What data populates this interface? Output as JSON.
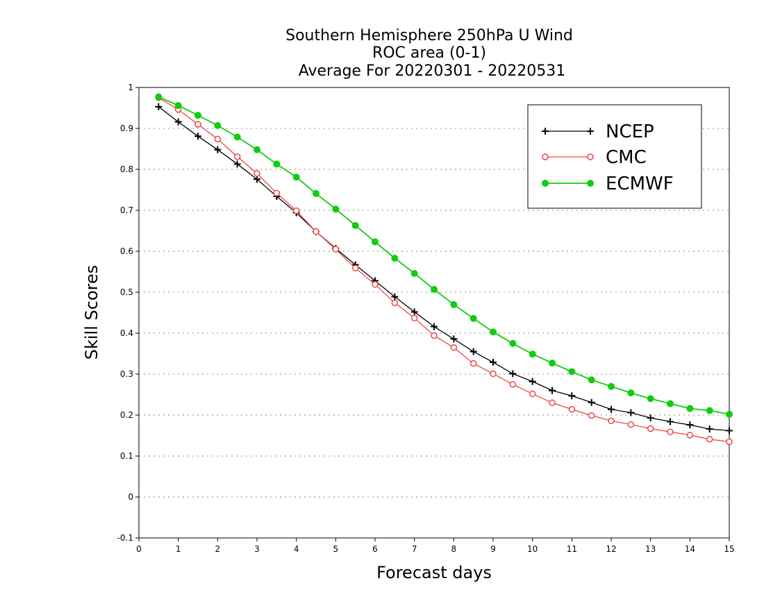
{
  "chart_data": {
    "type": "line",
    "title_lines": [
      "Southern Hemisphere 250hPa U Wind",
      "ROC area (0-1)",
      "Average For 20220301 - 20220531"
    ],
    "xlabel": "Forecast days",
    "ylabel": "Skill Scores",
    "xlim": [
      0,
      15
    ],
    "ylim": [
      -0.1,
      1
    ],
    "xticks": [
      0,
      1,
      2,
      3,
      4,
      5,
      6,
      7,
      8,
      9,
      10,
      11,
      12,
      13,
      14,
      15
    ],
    "xtick_labels": [
      "0",
      "1",
      "2",
      "3",
      "4",
      "5",
      "6",
      "7",
      "8",
      "9",
      "10",
      "11",
      "12",
      "13",
      "14",
      "15"
    ],
    "yticks": [
      -0.1,
      0,
      0.1,
      0.2,
      0.3,
      0.4,
      0.5,
      0.6,
      0.7,
      0.8,
      0.9,
      1
    ],
    "ytick_labels": [
      "-0.1",
      "0",
      "0.1",
      "0.2",
      "0.3",
      "0.4",
      "0.5",
      "0.6",
      "0.7",
      "0.8",
      "0.9",
      "1"
    ],
    "grid": "horizontal dotted",
    "legend_position": "top-right",
    "x": [
      0.5,
      1,
      1.5,
      2,
      2.5,
      3,
      3.5,
      4,
      4.5,
      5,
      5.5,
      6,
      6.5,
      7,
      7.5,
      8,
      8.5,
      9,
      9.5,
      10,
      10.5,
      11,
      11.5,
      12,
      12.5,
      13,
      13.5,
      14,
      14.5,
      15
    ],
    "series": [
      {
        "name": "NCEP",
        "color": "#000000",
        "marker": "plus",
        "values": [
          0.953,
          0.916,
          0.881,
          0.848,
          0.813,
          0.776,
          0.734,
          0.694,
          0.648,
          0.607,
          0.567,
          0.528,
          0.489,
          0.452,
          0.416,
          0.386,
          0.355,
          0.329,
          0.301,
          0.282,
          0.26,
          0.247,
          0.231,
          0.214,
          0.206,
          0.193,
          0.184,
          0.176,
          0.166,
          0.162
        ]
      },
      {
        "name": "CMC",
        "color": "#ee4444",
        "marker": "open-circle",
        "values": [
          0.975,
          0.946,
          0.91,
          0.874,
          0.831,
          0.79,
          0.742,
          0.699,
          0.648,
          0.605,
          0.559,
          0.519,
          0.474,
          0.437,
          0.394,
          0.365,
          0.326,
          0.301,
          0.275,
          0.252,
          0.23,
          0.214,
          0.199,
          0.186,
          0.177,
          0.167,
          0.159,
          0.151,
          0.141,
          0.135
        ]
      },
      {
        "name": "ECMWF",
        "color": "#11cc11",
        "marker": "filled-circle",
        "values": [
          0.977,
          0.956,
          0.932,
          0.907,
          0.879,
          0.848,
          0.813,
          0.781,
          0.741,
          0.703,
          0.663,
          0.623,
          0.583,
          0.546,
          0.507,
          0.47,
          0.436,
          0.403,
          0.375,
          0.349,
          0.327,
          0.306,
          0.286,
          0.27,
          0.254,
          0.24,
          0.228,
          0.216,
          0.211,
          0.202
        ]
      }
    ]
  }
}
